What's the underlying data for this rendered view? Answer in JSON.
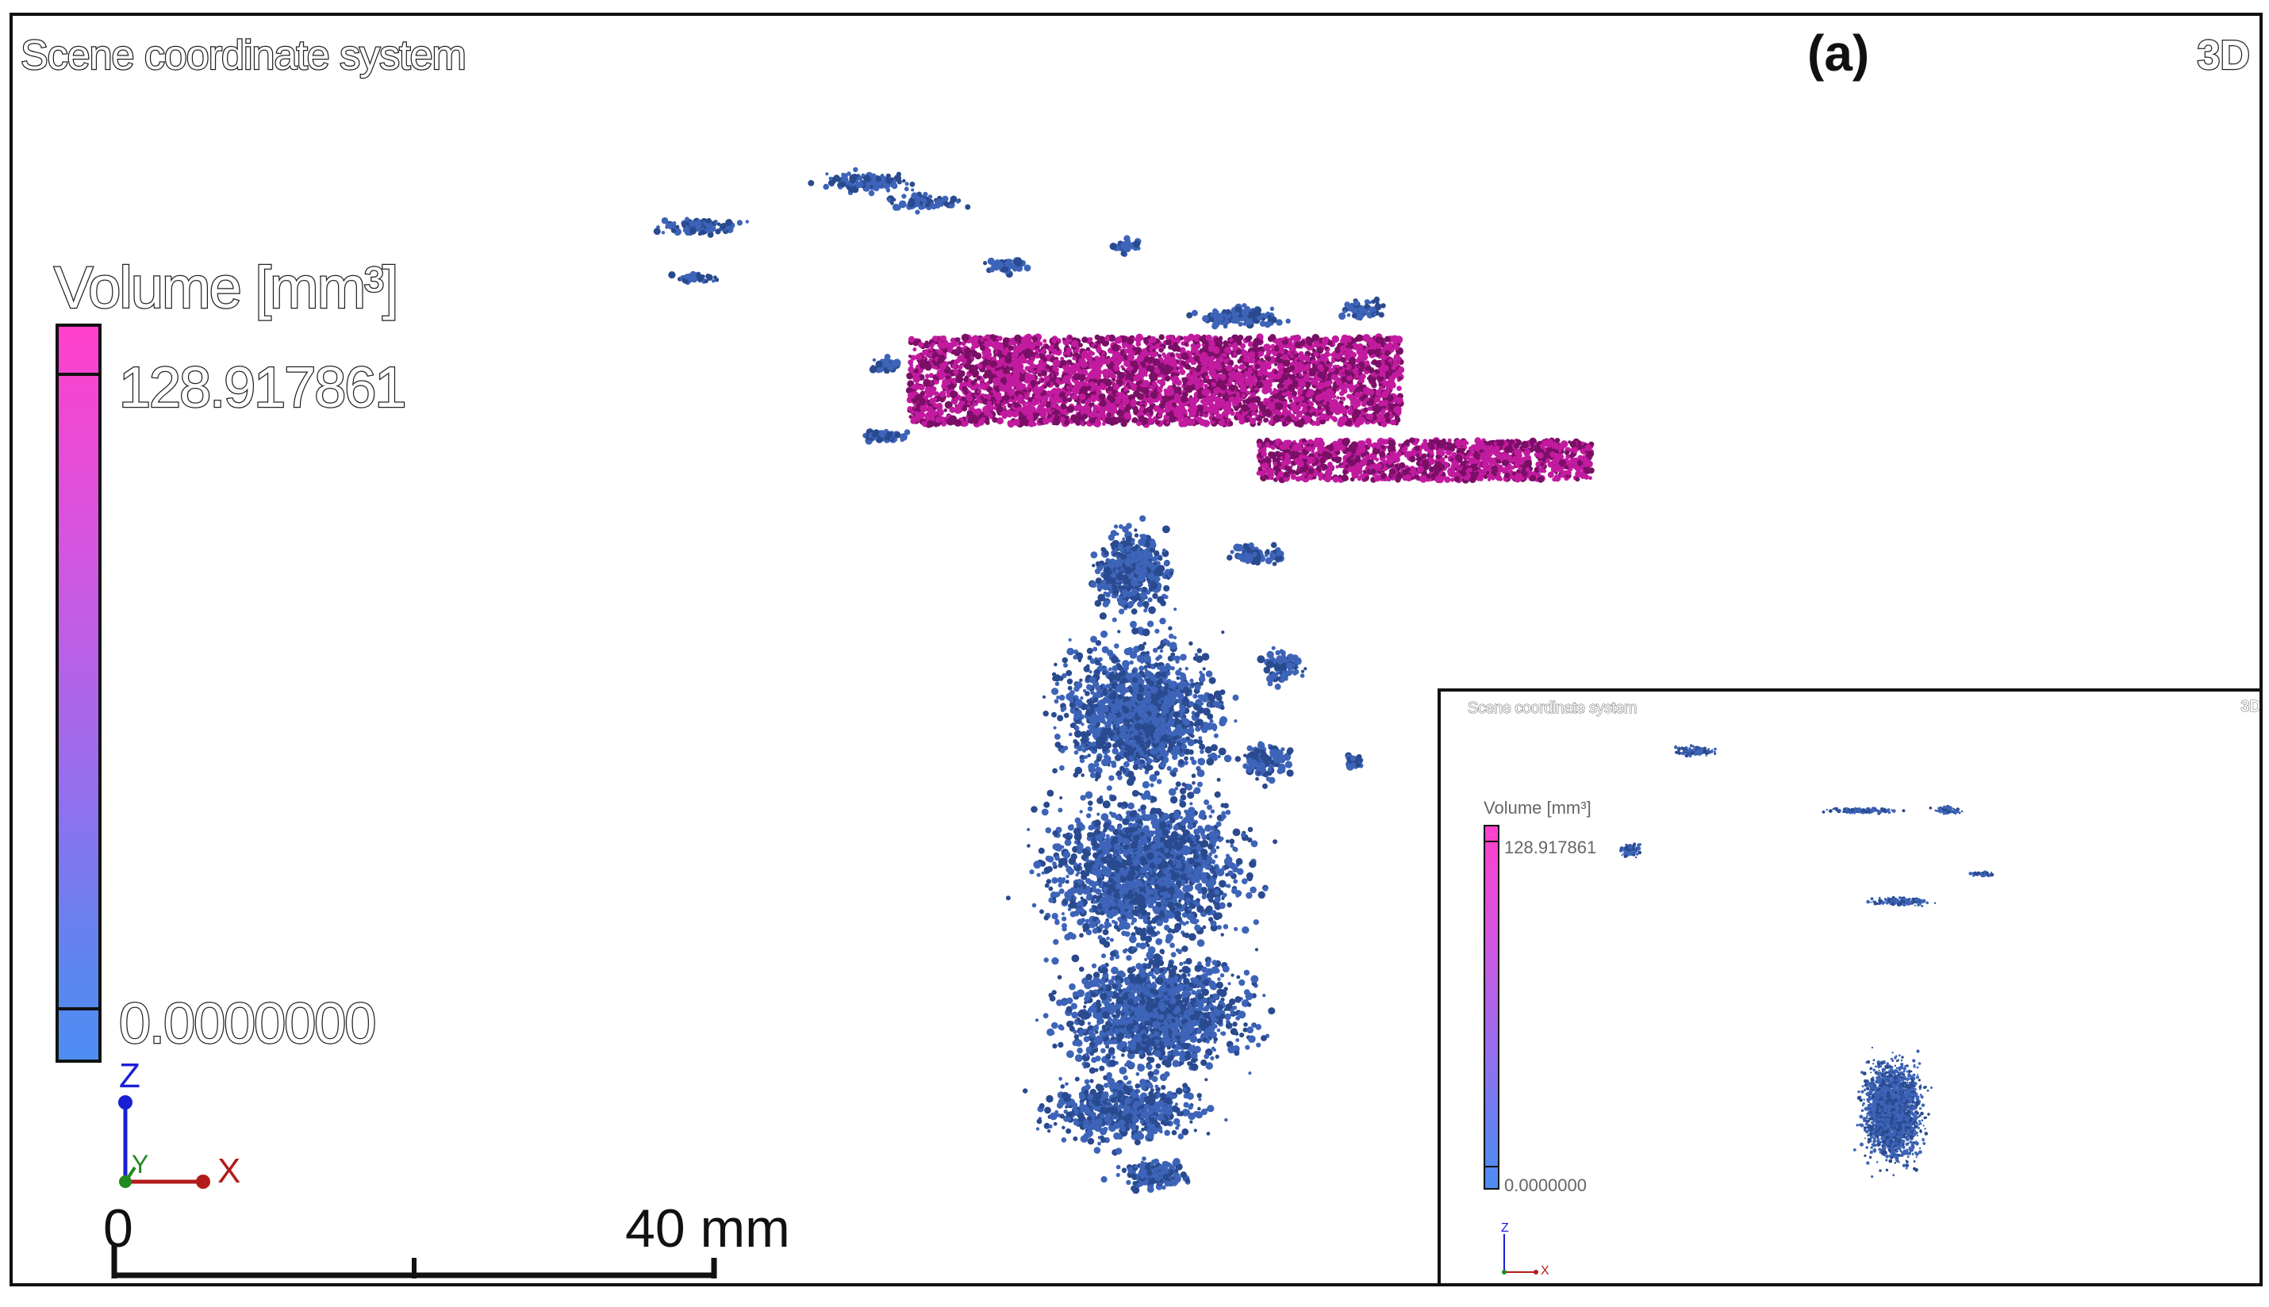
{
  "viewport": {
    "scene_label": "Scene coordinate system",
    "mode_label": "3D",
    "panel_letter": "(a)"
  },
  "legend": {
    "title": "Volume [mm³]",
    "max_label": "128.917861",
    "min_label": "0.0000000",
    "color_max": "#ff40cc",
    "color_min": "#4e8df2"
  },
  "axes": {
    "z": "Z",
    "y": "Y",
    "x": "X",
    "colors": {
      "x": "#b31b1b",
      "y": "#1f8a1f",
      "z": "#1a1fd6"
    }
  },
  "scale_bar": {
    "zero_label": "0",
    "max_label": "40 mm"
  },
  "inset": {
    "scene_label": "Scene coordinate system",
    "mode_label": "3D",
    "legend_title": "Volume [mm³]",
    "legend_max": "128.917861",
    "legend_min": "0.0000000",
    "axis_z": "Z",
    "axis_x": "X"
  },
  "render_colors": {
    "cluster_blue": "#3d64b8",
    "cluster_blue_dark": "#2a4a8f",
    "cluster_magenta": "#c21b9f",
    "cluster_magenta_dark": "#7a0f66"
  }
}
